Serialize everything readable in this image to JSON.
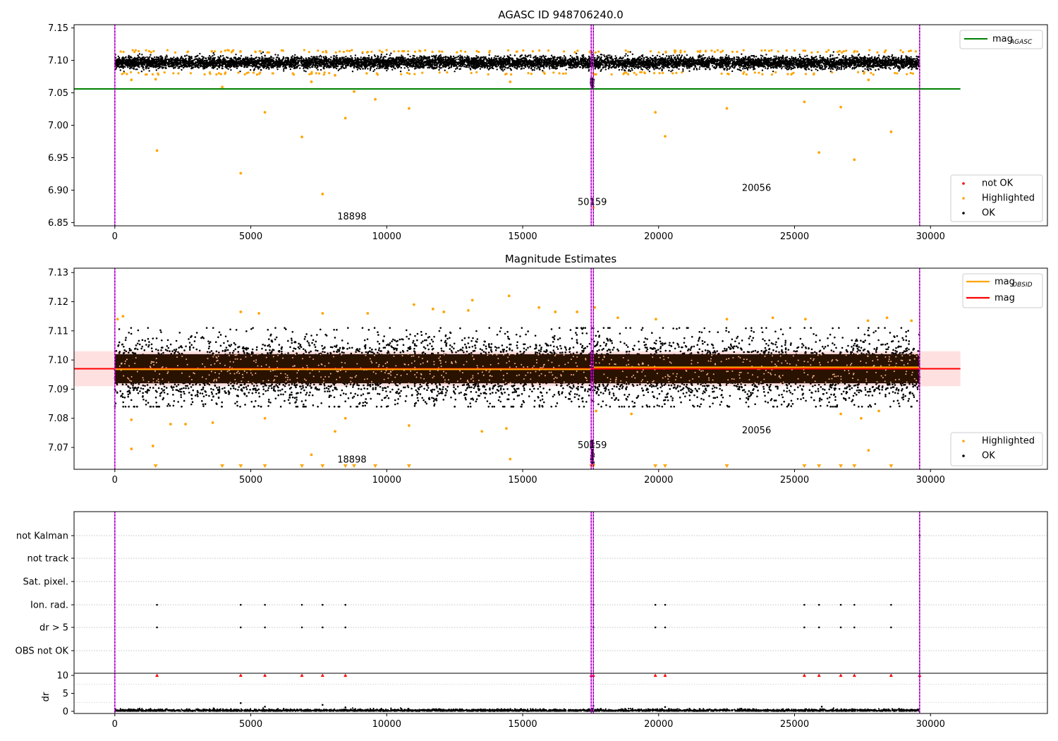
{
  "chart_data": [
    {
      "type": "scatter",
      "title": "AGASC ID 948706240.0",
      "xlim": [
        -1500,
        34300
      ],
      "ylim": [
        6.845,
        7.155
      ],
      "x_ticks": [
        0,
        5000,
        10000,
        15000,
        20000,
        25000,
        30000
      ],
      "y_ticks": [
        "6.85",
        "6.90",
        "6.95",
        "7.00",
        "7.05",
        "7.10",
        "7.15"
      ],
      "vlines": [
        0,
        17520,
        17600,
        29600
      ],
      "hline": {
        "name": "mag_AGASC",
        "value": 7.056,
        "x_range": [
          -1500,
          31100
        ],
        "color": "#008000"
      },
      "main_band": {
        "x_range": [
          0,
          29600
        ],
        "y_range": [
          7.083,
          7.113
        ]
      },
      "dip": {
        "x": 17560,
        "y_range": [
          7.058,
          7.073
        ]
      },
      "highlighted": [
        [
          1550,
          6.961
        ],
        [
          4630,
          6.926
        ],
        [
          5520,
          7.02
        ],
        [
          6880,
          6.982
        ],
        [
          7230,
          7.067
        ],
        [
          7640,
          6.894
        ],
        [
          8100,
          7.077
        ],
        [
          8480,
          7.011
        ],
        [
          8800,
          7.052
        ],
        [
          9580,
          7.04
        ],
        [
          10820,
          7.026
        ],
        [
          14540,
          7.067
        ],
        [
          17600,
          6.873
        ],
        [
          19880,
          7.02
        ],
        [
          20240,
          6.983
        ],
        [
          22510,
          7.026
        ],
        [
          25360,
          7.036
        ],
        [
          25900,
          6.958
        ],
        [
          26700,
          7.028
        ],
        [
          27200,
          6.947
        ],
        [
          27720,
          7.07
        ],
        [
          28550,
          6.99
        ],
        [
          3950,
          7.059
        ],
        [
          610,
          7.07
        ],
        [
          1500,
          7.071
        ]
      ],
      "annotations": [
        {
          "text": "18898",
          "x": 8720,
          "y": 6.855
        },
        {
          "text": "50159",
          "x": 17560,
          "y": 6.877
        },
        {
          "text": "20056",
          "x": 23600,
          "y": 6.899
        }
      ],
      "legend_lines": [
        {
          "label_main": "mag",
          "label_sub": "AGASC",
          "color": "#008000"
        }
      ],
      "legend_points": [
        {
          "label": "not OK",
          "color": "#ff0000"
        },
        {
          "label": "Highlighted",
          "color": "#ffa500"
        },
        {
          "label": "OK",
          "color": "#000000"
        }
      ]
    },
    {
      "type": "scatter",
      "title": "Magnitude Estimates",
      "xlim": [
        -1500,
        34300
      ],
      "ylim": [
        7.0625,
        7.1315
      ],
      "x_ticks": [
        0,
        5000,
        10000,
        15000,
        20000,
        25000,
        30000
      ],
      "y_ticks": [
        "7.07",
        "7.08",
        "7.09",
        "7.10",
        "7.11",
        "7.12",
        "7.13"
      ],
      "vlines": [
        0,
        17520,
        17600,
        29600
      ],
      "band": {
        "y_range": [
          7.091,
          7.103
        ],
        "x_range": [
          -1500,
          31100
        ]
      },
      "mag_line": {
        "value": 7.097,
        "x_range": [
          -1500,
          31100
        ],
        "color": "#ff0000"
      },
      "mag_obsid": [
        {
          "x_range": [
            0,
            17520
          ],
          "value": 7.0968
        },
        {
          "x_range": [
            17600,
            29600
          ],
          "value": 7.0975
        }
      ],
      "dense_band": {
        "x_range": [
          0,
          29600
        ],
        "y_range": [
          7.092,
          7.102
        ]
      },
      "scatter_band": {
        "x_range": [
          0,
          29600
        ],
        "y_range": [
          7.084,
          7.111
        ]
      },
      "highlighted": [
        [
          610,
          7.0795
        ],
        [
          610,
          7.0695
        ],
        [
          1400,
          7.0705
        ],
        [
          2050,
          7.078
        ],
        [
          2600,
          7.078
        ],
        [
          3600,
          7.0785
        ],
        [
          5520,
          7.08
        ],
        [
          7230,
          7.0675
        ],
        [
          8100,
          7.0755
        ],
        [
          8480,
          7.08
        ],
        [
          10820,
          7.0775
        ],
        [
          13500,
          7.0755
        ],
        [
          14400,
          7.0765
        ],
        [
          14540,
          7.066
        ],
        [
          17700,
          7.0825
        ],
        [
          19000,
          7.0815
        ],
        [
          26700,
          7.0815
        ],
        [
          27450,
          7.08
        ],
        [
          27720,
          7.069
        ],
        [
          28100,
          7.0825
        ],
        [
          100,
          7.114
        ],
        [
          300,
          7.115
        ],
        [
          4630,
          7.1165
        ],
        [
          5300,
          7.116
        ],
        [
          7640,
          7.116
        ],
        [
          9300,
          7.116
        ],
        [
          11000,
          7.119
        ],
        [
          11700,
          7.1175
        ],
        [
          12100,
          7.1165
        ],
        [
          13150,
          7.1205
        ],
        [
          13000,
          7.117
        ],
        [
          14500,
          7.122
        ],
        [
          15600,
          7.118
        ],
        [
          16200,
          7.1165
        ],
        [
          17000,
          7.1165
        ],
        [
          17650,
          7.118
        ],
        [
          18500,
          7.1145
        ],
        [
          19900,
          7.114
        ],
        [
          22510,
          7.114
        ],
        [
          24200,
          7.1145
        ],
        [
          25400,
          7.114
        ],
        [
          27700,
          7.1135
        ],
        [
          28400,
          7.1145
        ],
        [
          29300,
          7.1135
        ]
      ],
      "lower_markers": [
        1500,
        3950,
        4630,
        5520,
        6880,
        7640,
        8480,
        8800,
        9580,
        10820,
        17520,
        17600,
        19880,
        20240,
        22510,
        25360,
        25900,
        26700,
        27200,
        28550
      ],
      "dip": {
        "x": 17560,
        "y_range": [
          7.0635,
          7.0725
        ]
      },
      "annotations": [
        {
          "text": "18898",
          "x": 8720,
          "y": 7.0648
        },
        {
          "text": "50159",
          "x": 17560,
          "y": 7.0698
        },
        {
          "text": "20056",
          "x": 23600,
          "y": 7.0748
        }
      ],
      "legend_lines": [
        {
          "label_main": "mag",
          "label_sub": "OBSID",
          "color": "#ffa500"
        },
        {
          "label_main": "mag",
          "label_sub": "",
          "color": "#ff0000"
        }
      ],
      "legend_points": [
        {
          "label": "Highlighted",
          "color": "#ffa500"
        },
        {
          "label": "OK",
          "color": "#000000"
        }
      ]
    },
    {
      "type": "scatter",
      "title": "",
      "xlim": [
        -1500,
        34300
      ],
      "x_ticks": [
        0,
        5000,
        10000,
        15000,
        20000,
        25000,
        30000
      ],
      "flag_labels": [
        "not Kalman",
        "not track",
        "Sat. pixel.",
        "Ion. rad.",
        "dr > 5",
        "OBS not OK"
      ],
      "vlines": [
        0,
        17520,
        17600,
        29600
      ],
      "flag_points": {
        "Ion. rad.": [
          1550,
          4630,
          5520,
          6880,
          7640,
          8480,
          17600,
          19880,
          20240,
          25360,
          25900,
          26700,
          27200,
          28550
        ],
        "dr > 5": [
          1550,
          4630,
          5520,
          6880,
          7640,
          8480,
          17600,
          19880,
          20240,
          25360,
          25900,
          26700,
          27200,
          28550
        ],
        "not Kalman": [
          29600
        ]
      }
    },
    {
      "type": "scatter",
      "ylabel": "dr",
      "xlim": [
        -1500,
        34300
      ],
      "ylim": [
        -0.6,
        10.6
      ],
      "y_ticks": [
        "0",
        "5",
        "10"
      ],
      "x_ticks": [
        0,
        5000,
        10000,
        15000,
        20000,
        25000,
        30000
      ],
      "x_tick_labels": [
        "0",
        "5000",
        "10000",
        "15000",
        "20000",
        "25000",
        "30000"
      ],
      "vlines": [
        0,
        17520,
        17600,
        29600
      ],
      "clipped_markers": [
        1550,
        4630,
        5520,
        6880,
        7640,
        8480,
        17520,
        17600,
        19880,
        20240,
        25360,
        25900,
        26700,
        27200,
        28550,
        29600
      ],
      "outliers": [
        [
          4630,
          2.3
        ],
        [
          7640,
          1.8
        ],
        [
          5520,
          1.3
        ],
        [
          17600,
          1.5
        ],
        [
          20240,
          1.2
        ],
        [
          26000,
          1.3
        ],
        [
          8480,
          1.1
        ]
      ],
      "band_y_range": [
        0.05,
        0.9
      ]
    }
  ]
}
